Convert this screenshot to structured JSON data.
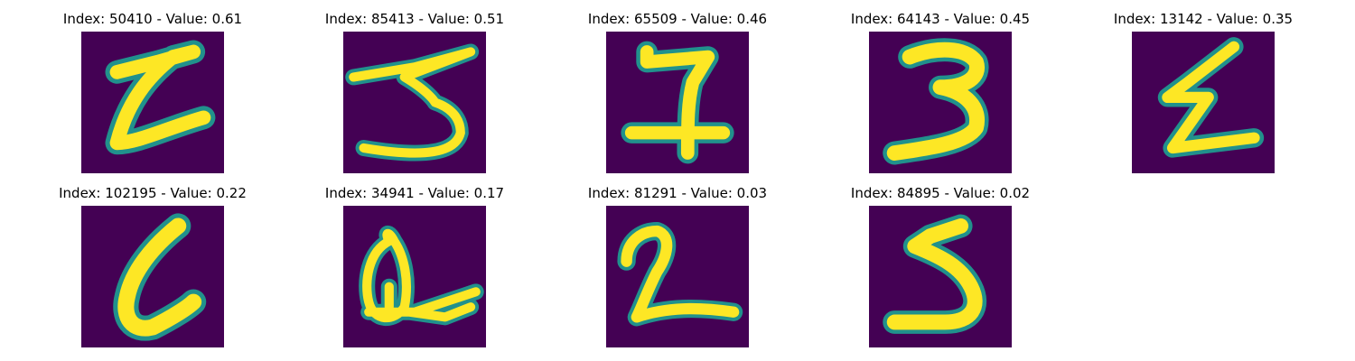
{
  "figure": {
    "panels": [
      {
        "index": "50410",
        "value": "0.61",
        "title": "Index: 50410 - Value: 0.61",
        "glyph": "handwritten-6-icon"
      },
      {
        "index": "85413",
        "value": "0.51",
        "title": "Index: 85413 - Value: 0.51",
        "glyph": "handwritten-3-icon"
      },
      {
        "index": "65509",
        "value": "0.46",
        "title": "Index: 65509 - Value: 0.46",
        "glyph": "handwritten-7-icon"
      },
      {
        "index": "64143",
        "value": "0.45",
        "title": "Index: 64143 - Value: 0.45",
        "glyph": "handwritten-3-icon"
      },
      {
        "index": "13142",
        "value": "0.35",
        "title": "Index: 13142 - Value: 0.35",
        "glyph": "handwritten-z-icon"
      },
      {
        "index": "102195",
        "value": "0.22",
        "title": "Index: 102195 - Value: 0.22",
        "glyph": "handwritten-6-icon"
      },
      {
        "index": "34941",
        "value": "0.17",
        "title": "Index: 34941 - Value: 0.17",
        "glyph": "handwritten-q-icon"
      },
      {
        "index": "81291",
        "value": "0.03",
        "title": "Index: 81291 - Value: 0.03",
        "glyph": "handwritten-2-icon"
      },
      {
        "index": "84895",
        "value": "0.02",
        "title": "Index: 84895 - Value: 0.02",
        "glyph": "handwritten-5-icon"
      }
    ]
  },
  "colors": {
    "background": "#440154",
    "stroke_outer": "#21918c",
    "stroke_inner": "#fde725"
  }
}
